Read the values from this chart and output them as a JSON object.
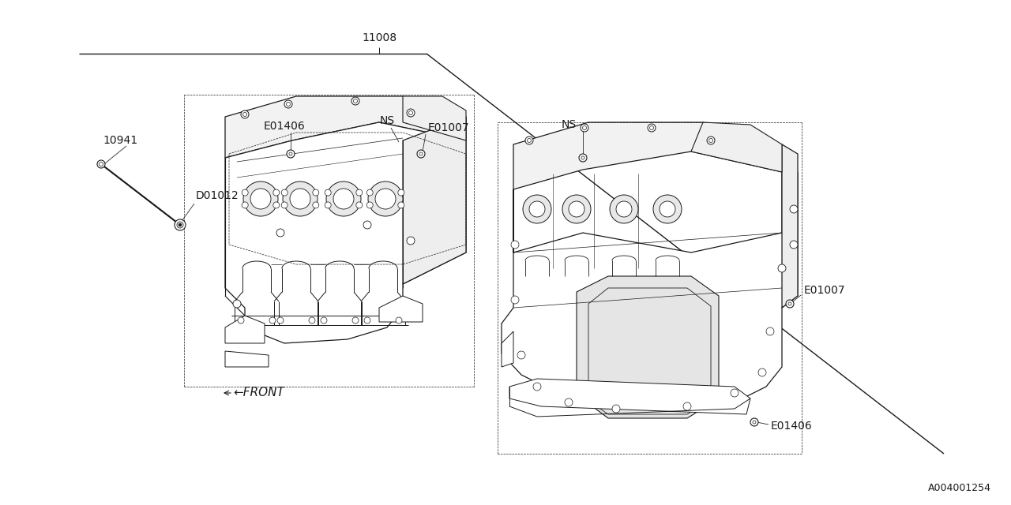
{
  "bg_color": "#ffffff",
  "line_color": "#1a1a1a",
  "catalog_num": "A004001254",
  "label_11008": "11008",
  "label_10941": "10941",
  "label_D01012": "D01012",
  "label_E01406_left": "E01406",
  "label_NS_left": "NS",
  "label_E01007_left": "E01007",
  "label_NS_right": "NS",
  "label_E01007_right": "E01007",
  "label_E01406_right": "E01406",
  "label_front": "←FRONT",
  "font_size": 10,
  "line_width": 0.8
}
